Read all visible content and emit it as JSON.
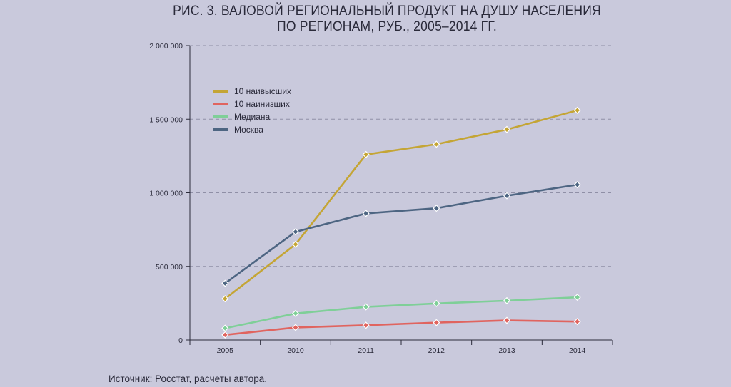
{
  "title_lines": [
    "РИС. 3. ВАЛОВОЙ РЕГИОНАЛЬНЫЙ ПРОДУКТ НА ДУШУ НАСЕЛЕНИЯ",
    "ПО РЕГИОНАМ, РУБ., 2005–2014 ГГ."
  ],
  "source": "Источник: Росстат, расчеты автора.",
  "chart_data": {
    "type": "line",
    "title": "РИС. 3. ВАЛОВОЙ РЕГИОНАЛЬНЫЙ ПРОДУКТ НА ДУШУ НАСЕЛЕНИЯ ПО РЕГИОНАМ, РУБ., 2005–2014 ГГ.",
    "categories": [
      "2005",
      "2010",
      "2011",
      "2012",
      "2013",
      "2014"
    ],
    "ylim": [
      0,
      2000000
    ],
    "yticks": [
      0,
      500000,
      1000000,
      1500000,
      2000000
    ],
    "ytick_labels": [
      "0",
      "500 000",
      "1 000 000",
      "1 500 000",
      "2 000 000"
    ],
    "grid": "horizontal dashed",
    "legend_position": "top-left",
    "series": [
      {
        "name": "10 наивысших",
        "color": "#c4a535",
        "values": [
          280000,
          650000,
          1260000,
          1330000,
          1430000,
          1560000
        ]
      },
      {
        "name": "10 наинизших",
        "color": "#e0645f",
        "values": [
          35000,
          85000,
          100000,
          118000,
          133000,
          125000
        ]
      },
      {
        "name": "Медиана",
        "color": "#7fcf98",
        "values": [
          80000,
          180000,
          225000,
          248000,
          267000,
          290000
        ]
      },
      {
        "name": "Москва",
        "color": "#4d6582",
        "values": [
          385000,
          735000,
          860000,
          895000,
          980000,
          1055000
        ]
      }
    ]
  }
}
